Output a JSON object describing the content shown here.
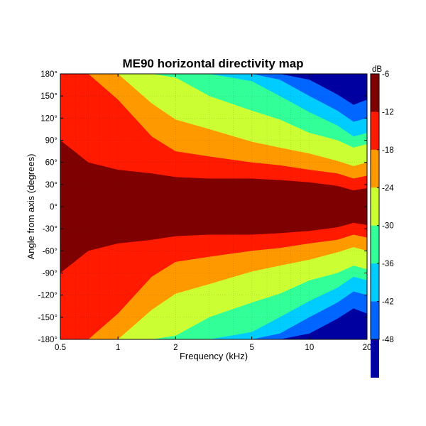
{
  "chart_data": {
    "type": "heatmap",
    "title": "ME90 horizontal directivity map",
    "xlabel": "Frequency (kHz)",
    "ylabel": "Angle from axis (degrees)",
    "xscale": "log",
    "xlim": [
      0.5,
      20
    ],
    "ylim": [
      -180,
      180
    ],
    "x_ticks": [
      0.5,
      1,
      2,
      5,
      10,
      20
    ],
    "x_tick_labels": [
      "0.5",
      "1",
      "2",
      "5",
      "10",
      "20"
    ],
    "y_ticks": [
      180,
      150,
      120,
      90,
      60,
      30,
      0,
      -30,
      -60,
      -90,
      -120,
      -150,
      -180
    ],
    "y_tick_labels": [
      "180°",
      "150°",
      "120°",
      "90°",
      "60°",
      "30°",
      "0°",
      "-30°",
      "-60°",
      "-90°",
      "-120°",
      "-150°",
      "-180°"
    ],
    "grid": true,
    "colorbar": {
      "label": "dB",
      "range": [
        -48,
        -6
      ],
      "ticks": [
        -6,
        -12,
        -18,
        -24,
        -30,
        -36,
        -42,
        -48
      ],
      "tick_labels": [
        "-6",
        "-12",
        "-18",
        "-24",
        "-30",
        "-36",
        "-42",
        "-48"
      ],
      "level_colors": [
        "#7f0000",
        "#ff1a00",
        "#ff9900",
        "#ccff33",
        "#33ff99",
        "#00ccff",
        "#0066ff",
        "#0000a0"
      ]
    },
    "contour_boundaries": {
      "frequency_khz": [
        0.5,
        0.7,
        1,
        1.5,
        2,
        3,
        5,
        7,
        10,
        14,
        17,
        20
      ],
      "comment_units": "angle in degrees where level drops below each dB threshold",
      "-6": [
        90,
        60,
        50,
        45,
        40,
        38,
        38,
        36,
        33,
        28,
        22,
        25
      ],
      "-12": [
        180,
        180,
        145,
        95,
        75,
        68,
        60,
        56,
        50,
        45,
        38,
        42
      ],
      "-18": [
        180,
        180,
        180,
        140,
        118,
        105,
        88,
        80,
        72,
        62,
        55,
        60
      ],
      "-24": [
        180,
        180,
        180,
        180,
        175,
        150,
        130,
        118,
        100,
        90,
        80,
        85
      ],
      "-30": [
        180,
        180,
        180,
        180,
        180,
        180,
        170,
        150,
        128,
        110,
        95,
        100
      ],
      "-36": [
        180,
        180,
        180,
        180,
        180,
        180,
        180,
        172,
        150,
        130,
        115,
        120
      ],
      "-42": [
        180,
        180,
        180,
        180,
        180,
        180,
        180,
        180,
        172,
        152,
        138,
        145
      ]
    }
  }
}
